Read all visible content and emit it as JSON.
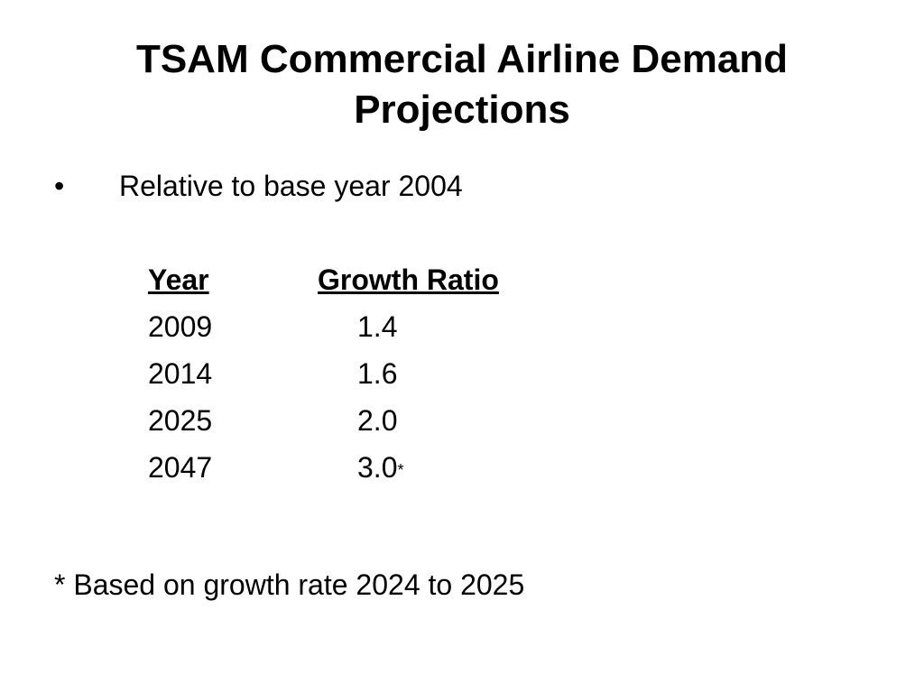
{
  "slide": {
    "title_line1": "TSAM Commercial Airline Demand",
    "title_line2": "Projections",
    "bullet_symbol": "•",
    "bullet_text": "Relative to base year 2004",
    "table": {
      "headers": [
        "Year",
        "Growth Ratio"
      ],
      "rows": [
        {
          "year": "2009",
          "ratio": "1.4",
          "mark": ""
        },
        {
          "year": "2014",
          "ratio": "1.6",
          "mark": ""
        },
        {
          "year": "2025",
          "ratio": "2.0",
          "mark": ""
        },
        {
          "year": "2047",
          "ratio": "3.0",
          "mark": "*"
        }
      ]
    },
    "footnote": "* Based on growth rate 2024 to 2025"
  }
}
